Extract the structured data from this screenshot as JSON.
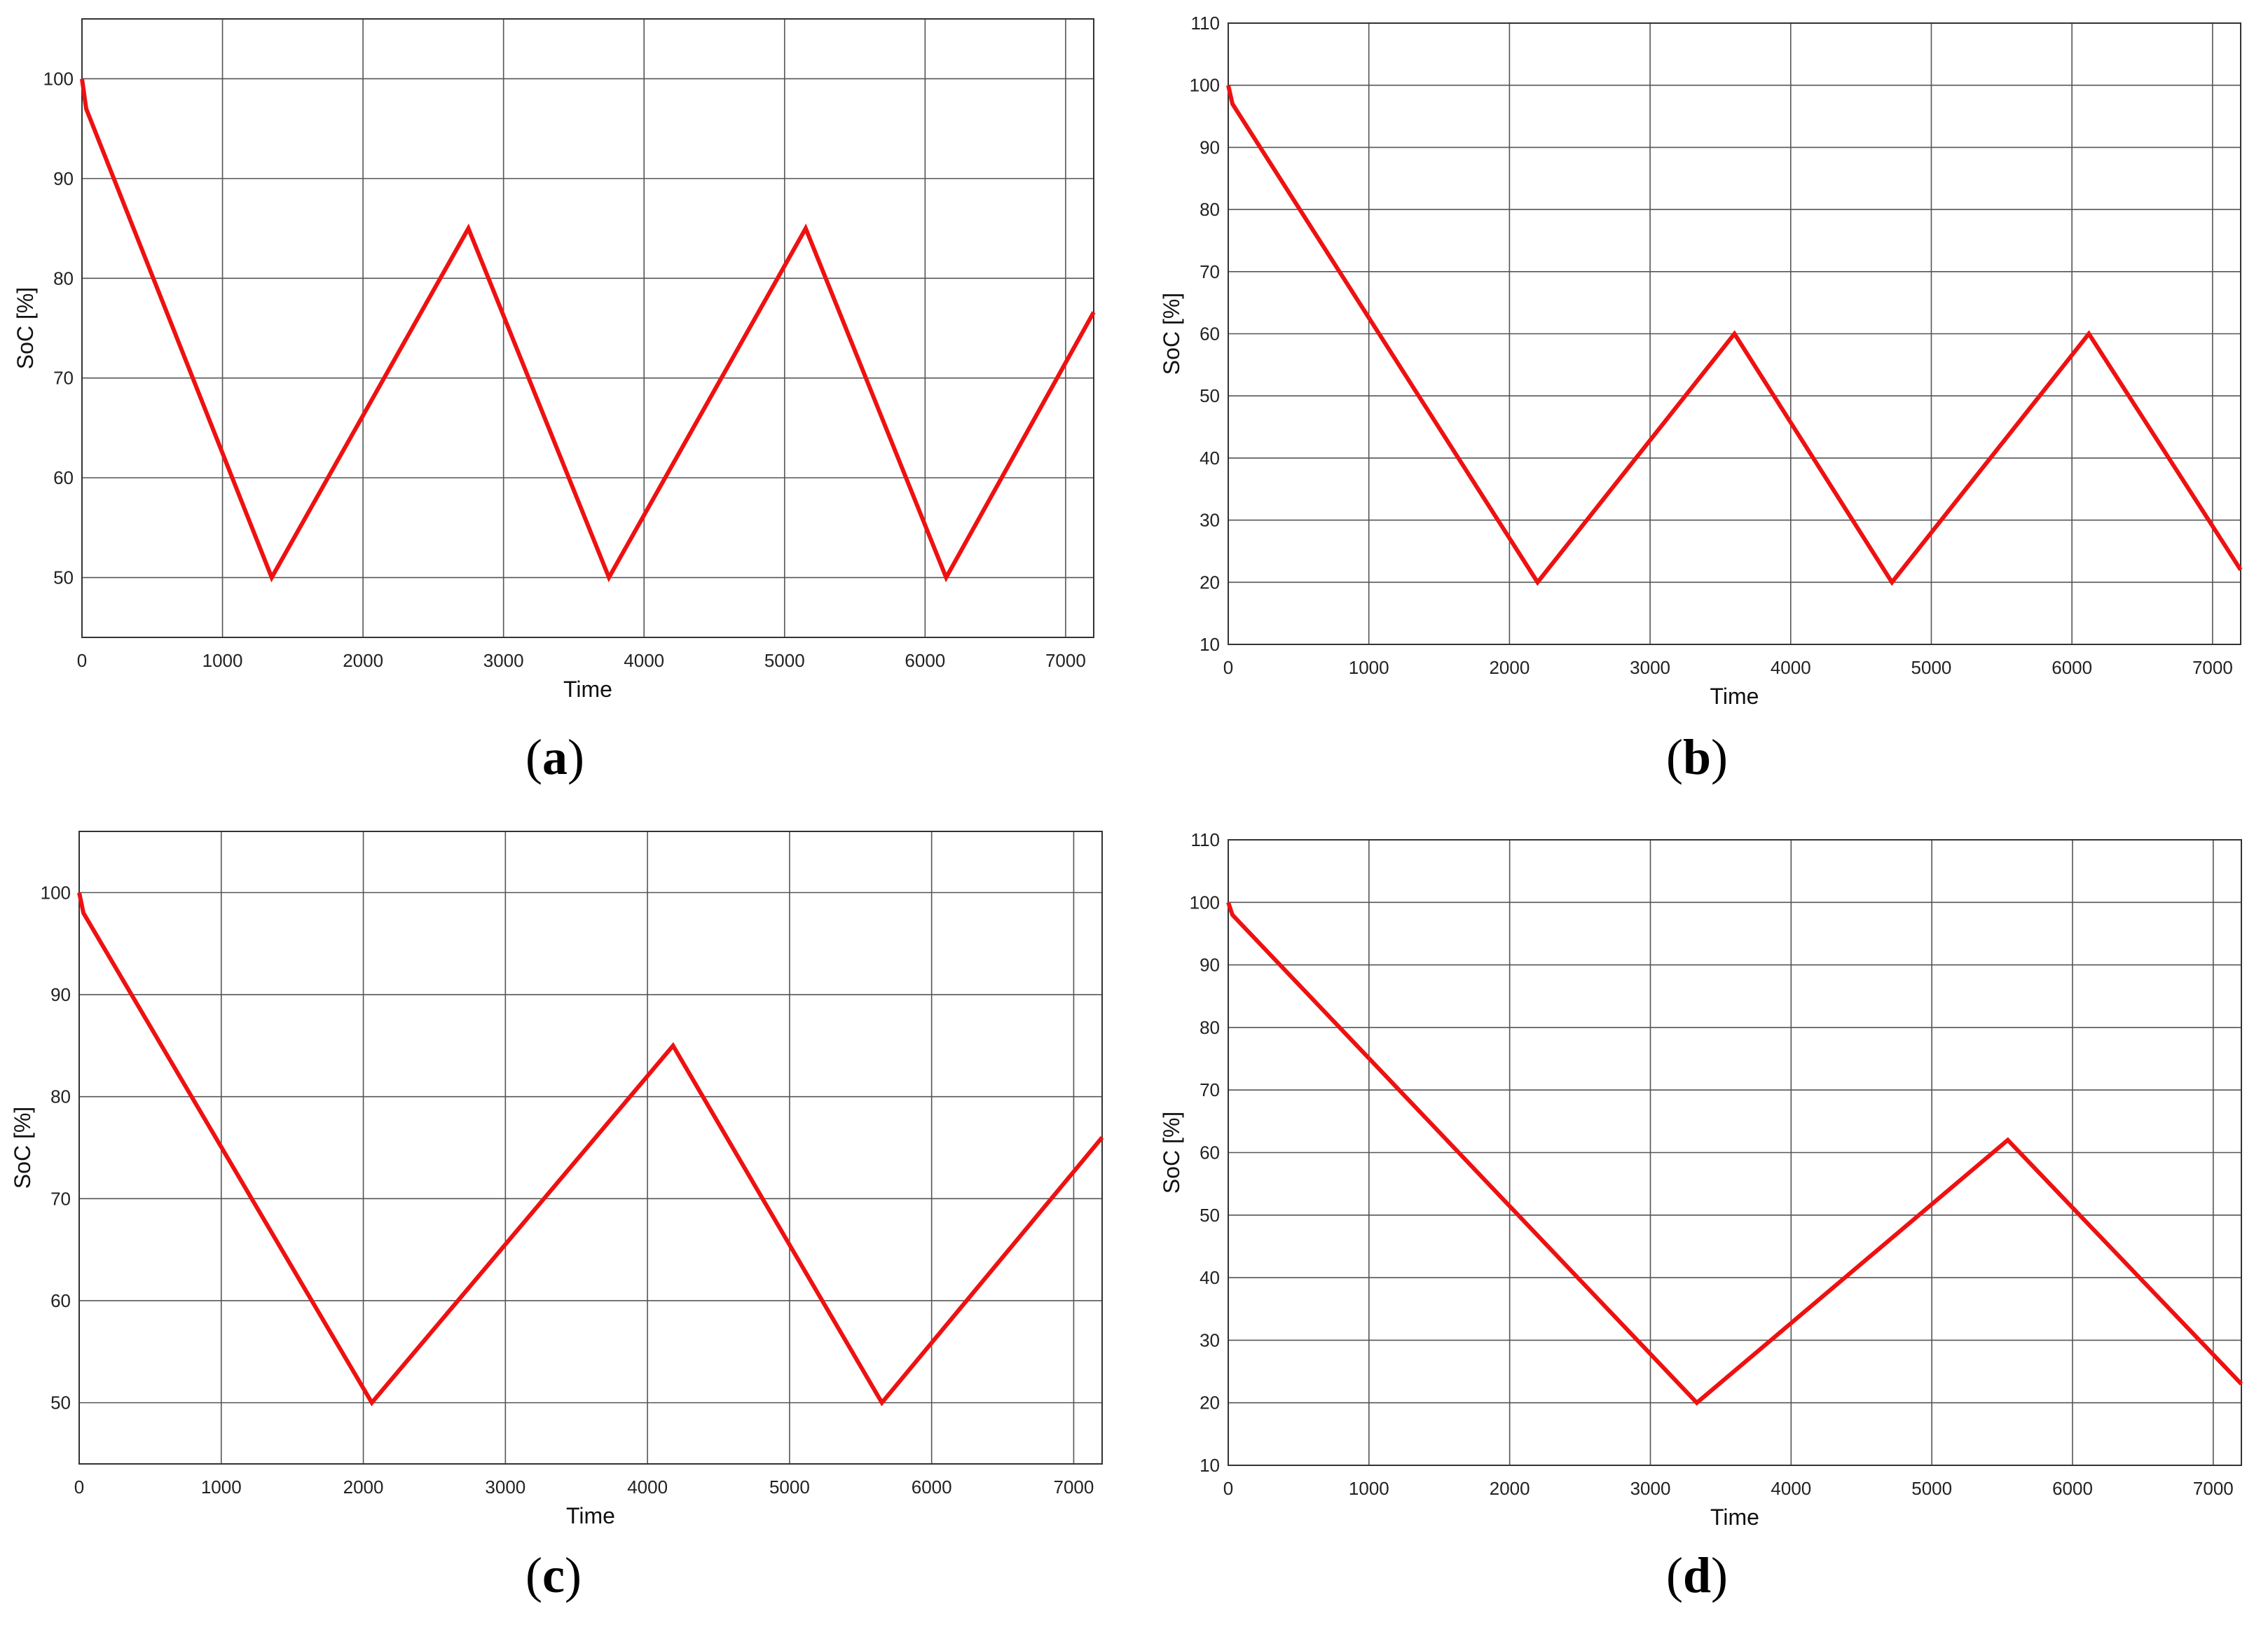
{
  "colors": {
    "line": "#ee1111",
    "grid": "#555555",
    "frame": "#333333"
  },
  "chart_data": [
    {
      "id": "a",
      "panel_label": "a",
      "type": "line",
      "xlabel": "Time",
      "ylabel": "SoC [%]",
      "xlim": [
        0,
        7200
      ],
      "ylim": [
        44,
        106
      ],
      "xticks": [
        0,
        1000,
        2000,
        3000,
        4000,
        5000,
        6000,
        7000
      ],
      "yticks": [
        50,
        60,
        70,
        80,
        90,
        100
      ],
      "grid": true,
      "series": [
        {
          "x": [
            0,
            30,
            1350,
            2750,
            3750,
            5150,
            6150,
            7200
          ],
          "y": [
            100,
            97,
            50,
            85,
            50,
            85,
            50,
            76.6
          ]
        }
      ]
    },
    {
      "id": "b",
      "panel_label": "b",
      "type": "line",
      "xlabel": "Time",
      "ylabel": "SoC [%]",
      "xlim": [
        0,
        7200
      ],
      "ylim": [
        10,
        110
      ],
      "xticks": [
        0,
        1000,
        2000,
        3000,
        4000,
        5000,
        6000,
        7000
      ],
      "yticks": [
        10,
        20,
        30,
        40,
        50,
        60,
        70,
        80,
        90,
        100,
        110
      ],
      "grid": true,
      "series": [
        {
          "x": [
            0,
            30,
            2200,
            3600,
            4720,
            6120,
            7200
          ],
          "y": [
            100,
            97,
            20,
            60,
            20,
            60,
            22
          ]
        }
      ]
    },
    {
      "id": "c",
      "panel_label": "c",
      "type": "line",
      "xlabel": "Time",
      "ylabel": "SoC [%]",
      "xlim": [
        0,
        7200
      ],
      "ylim": [
        44,
        106
      ],
      "xticks": [
        0,
        1000,
        2000,
        3000,
        4000,
        5000,
        6000,
        7000
      ],
      "yticks": [
        50,
        60,
        70,
        80,
        90,
        100
      ],
      "grid": true,
      "series": [
        {
          "x": [
            0,
            30,
            2060,
            4180,
            5650,
            7200
          ],
          "y": [
            100,
            98,
            50,
            85,
            50,
            76
          ]
        }
      ]
    },
    {
      "id": "d",
      "panel_label": "d",
      "type": "line",
      "xlabel": "Time",
      "ylabel": "SoC [%]",
      "xlim": [
        0,
        7200
      ],
      "ylim": [
        10,
        110
      ],
      "xticks": [
        0,
        1000,
        2000,
        3000,
        4000,
        5000,
        6000,
        7000
      ],
      "yticks": [
        10,
        20,
        30,
        40,
        50,
        60,
        70,
        80,
        90,
        100,
        110
      ],
      "grid": true,
      "series": [
        {
          "x": [
            0,
            30,
            3330,
            5540,
            7200
          ],
          "y": [
            100,
            98,
            20,
            62,
            23
          ]
        }
      ]
    }
  ]
}
